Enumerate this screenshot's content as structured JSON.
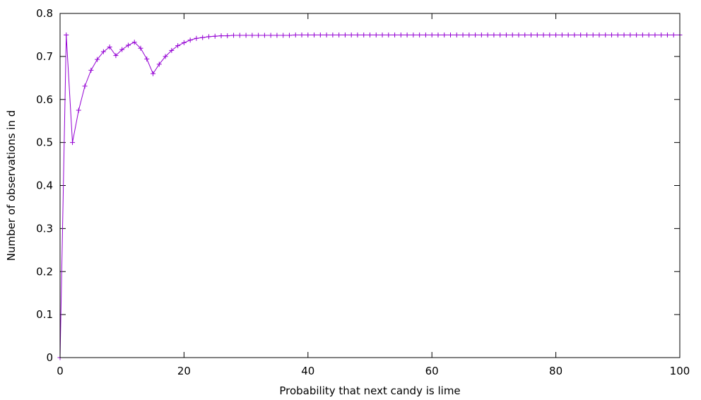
{
  "chart_data": {
    "type": "line",
    "title": "",
    "xlabel": "Probability that next candy is lime",
    "ylabel": "Number of observations in d",
    "xlim": [
      0,
      100
    ],
    "ylim": [
      0,
      0.8
    ],
    "xticks": [
      0,
      20,
      40,
      60,
      80,
      100
    ],
    "yticks": [
      0,
      0.1,
      0.2,
      0.3,
      0.4,
      0.5,
      0.6,
      0.7,
      0.8
    ],
    "xtick_labels": [
      "0",
      "20",
      "40",
      "60",
      "80",
      "100"
    ],
    "ytick_labels": [
      "0",
      "0.1",
      "0.2",
      "0.3",
      "0.4",
      "0.5",
      "0.6",
      "0.7",
      "0.8"
    ],
    "grid": false,
    "legend": "none",
    "marker": "plus",
    "color": "#9400d3",
    "series": [
      {
        "x": [
          0,
          1,
          2,
          3,
          4,
          5,
          6,
          7,
          8,
          9,
          10,
          11,
          12,
          13,
          14,
          15,
          16,
          17,
          18,
          19,
          20,
          21,
          22,
          23,
          24,
          25,
          26,
          27,
          28,
          29,
          30,
          31,
          32,
          33,
          34,
          35,
          36,
          37,
          38,
          39,
          40,
          41,
          42,
          43,
          44,
          45,
          46,
          47,
          48,
          49,
          50,
          51,
          52,
          53,
          54,
          55,
          56,
          57,
          58,
          59,
          60,
          61,
          62,
          63,
          64,
          65,
          66,
          67,
          68,
          69,
          70,
          71,
          72,
          73,
          74,
          75,
          76,
          77,
          78,
          79,
          80,
          81,
          82,
          83,
          84,
          85,
          86,
          87,
          88,
          89,
          90,
          91,
          92,
          93,
          94,
          95,
          96,
          97,
          98,
          99,
          100
        ],
        "y": [
          0,
          0.75,
          0.5,
          0.575,
          0.631,
          0.668,
          0.693,
          0.711,
          0.722,
          0.702,
          0.716,
          0.726,
          0.733,
          0.719,
          0.694,
          0.66,
          0.682,
          0.7,
          0.714,
          0.725,
          0.732,
          0.738,
          0.742,
          0.744,
          0.746,
          0.747,
          0.748,
          0.748,
          0.749,
          0.749,
          0.749,
          0.749,
          0.749,
          0.749,
          0.749,
          0.749,
          0.749,
          0.749,
          0.75,
          0.75,
          0.75,
          0.75,
          0.75,
          0.75,
          0.75,
          0.75,
          0.75,
          0.75,
          0.75,
          0.75,
          0.75,
          0.75,
          0.75,
          0.75,
          0.75,
          0.75,
          0.75,
          0.75,
          0.75,
          0.75,
          0.75,
          0.75,
          0.75,
          0.75,
          0.75,
          0.75,
          0.75,
          0.75,
          0.75,
          0.75,
          0.75,
          0.75,
          0.75,
          0.75,
          0.75,
          0.75,
          0.75,
          0.75,
          0.75,
          0.75,
          0.75,
          0.75,
          0.75,
          0.75,
          0.75,
          0.75,
          0.75,
          0.75,
          0.75,
          0.75,
          0.75,
          0.75,
          0.75,
          0.75,
          0.75,
          0.75,
          0.75,
          0.75,
          0.75,
          0.75,
          0.75
        ]
      }
    ]
  }
}
